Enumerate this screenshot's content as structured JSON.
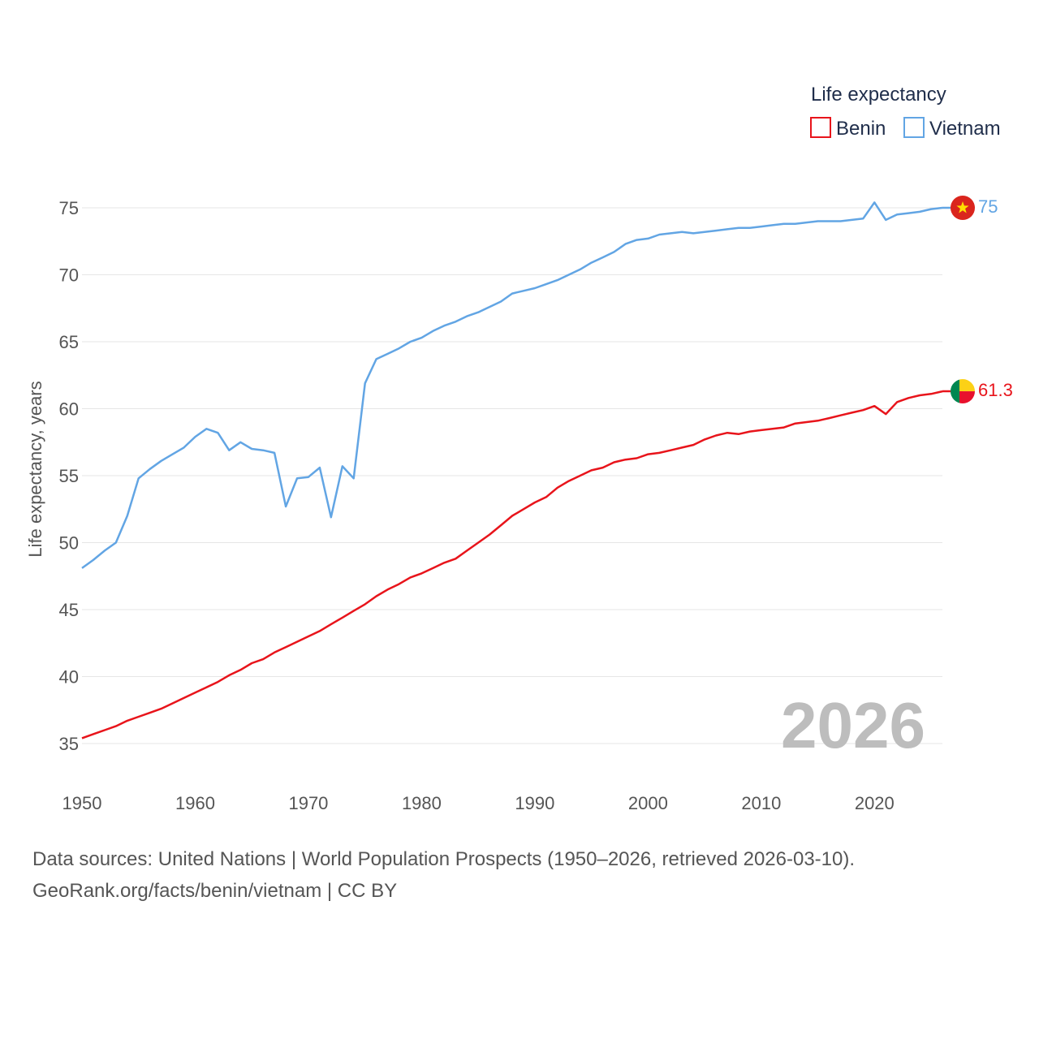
{
  "colors": {
    "benin": "#e8141b",
    "vietnam": "#62a5e4",
    "grid": "#e6e6e6",
    "text": "#555555"
  },
  "icons": {
    "vietnam_flag": "vietnam-flag-icon",
    "benin_flag": "benin-flag-icon"
  },
  "chart_data": {
    "type": "line",
    "title": "Life expectancy",
    "xlabel": "",
    "ylabel": "Life expectancy, years",
    "xlim": [
      1950,
      2026
    ],
    "ylim": [
      33,
      77
    ],
    "xticks": [
      1950,
      1960,
      1970,
      1980,
      1990,
      2000,
      2010,
      2020
    ],
    "yticks": [
      35,
      40,
      45,
      50,
      55,
      60,
      65,
      70,
      75
    ],
    "year_label": "2026",
    "legend": [
      "Benin",
      "Vietnam"
    ],
    "legend_position": "top-right",
    "series": [
      {
        "name": "Benin",
        "end_label": "61.3",
        "x": [
          1950,
          1951,
          1952,
          1953,
          1954,
          1955,
          1956,
          1957,
          1958,
          1959,
          1960,
          1961,
          1962,
          1963,
          1964,
          1965,
          1966,
          1967,
          1968,
          1969,
          1970,
          1971,
          1972,
          1973,
          1974,
          1975,
          1976,
          1977,
          1978,
          1979,
          1980,
          1981,
          1982,
          1983,
          1984,
          1985,
          1986,
          1987,
          1988,
          1989,
          1990,
          1991,
          1992,
          1993,
          1994,
          1995,
          1996,
          1997,
          1998,
          1999,
          2000,
          2001,
          2002,
          2003,
          2004,
          2005,
          2006,
          2007,
          2008,
          2009,
          2010,
          2011,
          2012,
          2013,
          2014,
          2015,
          2016,
          2017,
          2018,
          2019,
          2020,
          2021,
          2022,
          2023,
          2024,
          2025,
          2026
        ],
        "values": [
          35.4,
          35.7,
          36.0,
          36.3,
          36.7,
          37.0,
          37.3,
          37.6,
          38.0,
          38.4,
          38.8,
          39.2,
          39.6,
          40.1,
          40.5,
          41.0,
          41.3,
          41.8,
          42.2,
          42.6,
          43.0,
          43.4,
          43.9,
          44.4,
          44.9,
          45.4,
          46.0,
          46.5,
          46.9,
          47.4,
          47.7,
          48.1,
          48.5,
          48.8,
          49.4,
          50.0,
          50.6,
          51.3,
          52.0,
          52.5,
          53.0,
          53.4,
          54.1,
          54.6,
          55.0,
          55.4,
          55.6,
          56.0,
          56.2,
          56.3,
          56.6,
          56.7,
          56.9,
          57.1,
          57.3,
          57.7,
          58.0,
          58.2,
          58.1,
          58.3,
          58.4,
          58.5,
          58.6,
          58.9,
          59.0,
          59.1,
          59.3,
          59.5,
          59.7,
          59.9,
          60.2,
          59.6,
          60.5,
          60.8,
          61.0,
          61.1,
          61.3
        ]
      },
      {
        "name": "Vietnam",
        "end_label": "75",
        "x": [
          1950,
          1951,
          1952,
          1953,
          1954,
          1955,
          1956,
          1957,
          1958,
          1959,
          1960,
          1961,
          1962,
          1963,
          1964,
          1965,
          1966,
          1967,
          1968,
          1969,
          1970,
          1971,
          1972,
          1973,
          1974,
          1975,
          1976,
          1977,
          1978,
          1979,
          1980,
          1981,
          1982,
          1983,
          1984,
          1985,
          1986,
          1987,
          1988,
          1989,
          1990,
          1991,
          1992,
          1993,
          1994,
          1995,
          1996,
          1997,
          1998,
          1999,
          2000,
          2001,
          2002,
          2003,
          2004,
          2005,
          2006,
          2007,
          2008,
          2009,
          2010,
          2011,
          2012,
          2013,
          2014,
          2015,
          2016,
          2017,
          2018,
          2019,
          2020,
          2021,
          2022,
          2023,
          2024,
          2025,
          2026
        ],
        "values": [
          48.1,
          48.7,
          49.4,
          50.0,
          52.0,
          54.8,
          55.5,
          56.1,
          56.6,
          57.1,
          57.9,
          58.5,
          58.2,
          56.9,
          57.5,
          57.0,
          56.9,
          56.7,
          52.7,
          54.8,
          54.9,
          55.6,
          51.9,
          55.7,
          54.8,
          61.9,
          63.7,
          64.1,
          64.5,
          65.0,
          65.3,
          65.8,
          66.2,
          66.5,
          66.9,
          67.2,
          67.6,
          68.0,
          68.6,
          68.8,
          69.0,
          69.3,
          69.6,
          70.0,
          70.4,
          70.9,
          71.3,
          71.7,
          72.3,
          72.6,
          72.7,
          73.0,
          73.1,
          73.2,
          73.1,
          73.2,
          73.3,
          73.4,
          73.5,
          73.5,
          73.6,
          73.7,
          73.8,
          73.8,
          73.9,
          74.0,
          74.0,
          74.0,
          74.1,
          74.2,
          75.4,
          74.1,
          74.5,
          74.6,
          74.7,
          74.9,
          75.0
        ]
      }
    ]
  },
  "footer": {
    "line1": "Data sources: United Nations | World Population Prospects (1950–2026, retrieved 2026-03-10).",
    "line2": "GeoRank.org/facts/benin/vietnam | CC BY"
  }
}
